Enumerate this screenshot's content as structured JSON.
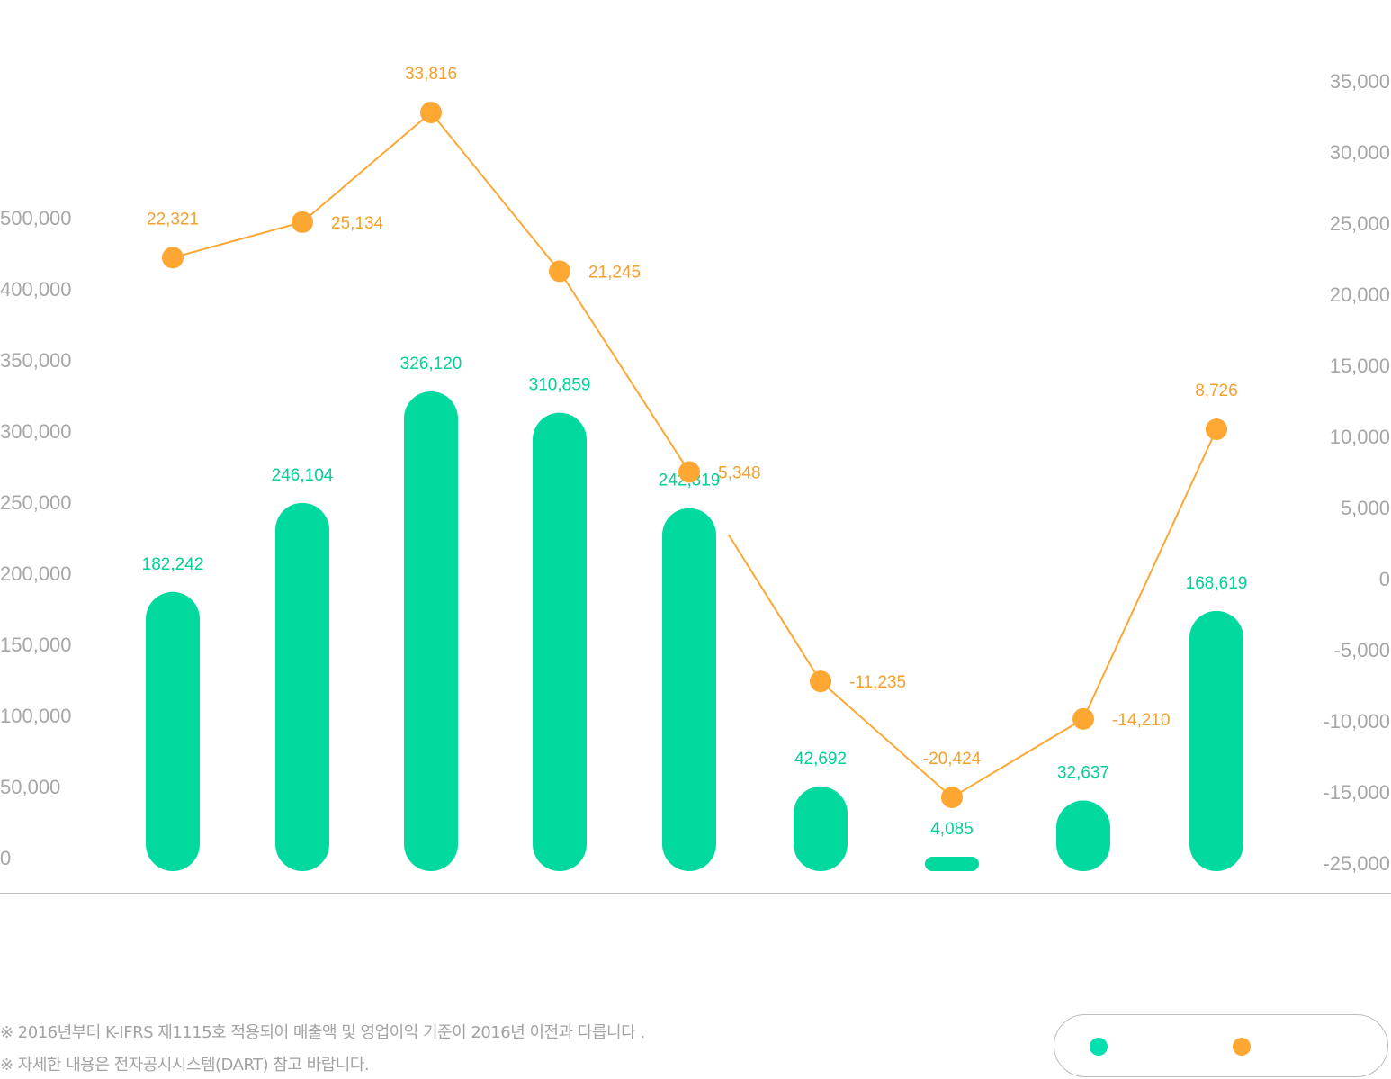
{
  "chart_data": {
    "type": "bar+line",
    "left_axis": {
      "ticks": [
        "0",
        "50,000",
        "100,000",
        "150,000",
        "200,000",
        "250,000",
        "300,000",
        "350,000",
        "400,000",
        "500,000"
      ],
      "ylim": [
        0,
        500000
      ]
    },
    "right_axis": {
      "ticks": [
        "35,000",
        "30,000",
        "25,000",
        "20,000",
        "15,000",
        "10,000",
        "5,000",
        "0",
        "-5,000",
        "-10,000",
        "-15,000",
        "-25,000"
      ],
      "ylim": [
        -25000,
        35000
      ]
    },
    "series": [
      {
        "type": "bar",
        "color": "#02d99f",
        "values": [
          182242,
          246104,
          326120,
          310859,
          242319,
          42692,
          4085,
          32637,
          168619
        ],
        "labels": [
          "182,242",
          "246,104",
          "326,120",
          "310,859",
          "242,319",
          "42,692",
          "4,085",
          "32,637",
          "168,619"
        ]
      },
      {
        "type": "line",
        "color": "#ffa733",
        "values": [
          22321,
          25134,
          33816,
          21245,
          5348,
          -11235,
          -20424,
          -14210,
          8726
        ],
        "labels": [
          "22,321",
          "25,134",
          "33,816",
          "21,245",
          "5,348",
          "-11,235",
          "-20,424",
          "-14,210",
          "8,726"
        ]
      }
    ],
    "grid": false,
    "legend": "bottom-right"
  },
  "footnotes": [
    "※ 2016년부터 K-IFRS 제1115호 적용되어 매출액 및 영업이익 기준이 2016년 이전과 다릅니다 .",
    "※ 자세한 내용은 전자공시시스템(DART) 참고 바랍니다."
  ]
}
